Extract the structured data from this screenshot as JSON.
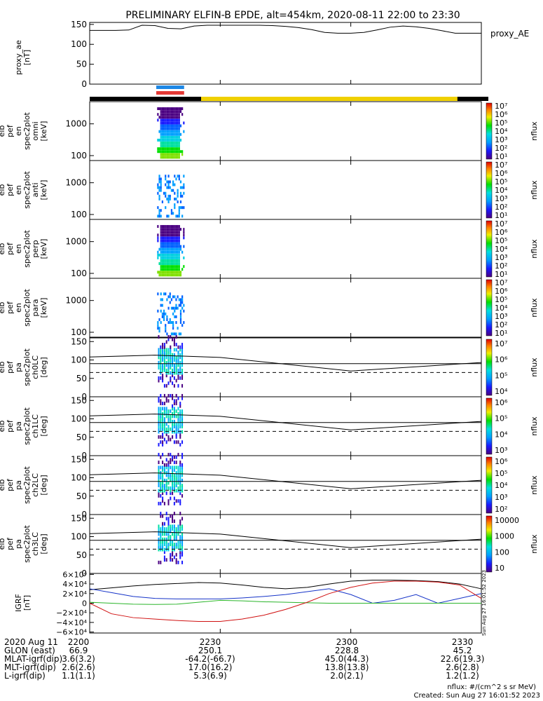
{
  "title": "PRELIMINARY ELFIN-B EPDE, alt=454km, 2020-08-11 22:00 to 23:30",
  "colors": {
    "frame": "#000000",
    "sun_bar": "#f0d000",
    "blue_bar": "#1e88e5",
    "red_bar": "#e53935",
    "cb_high": "#e53935",
    "cb_low": "#4b0082",
    "bgrf_x": "#000000",
    "bgrf_y": "#1533c8",
    "bgrf_z": "#2bb52b",
    "bgrf_r": "#d01010"
  },
  "time_axis": {
    "start_min": 0,
    "end_min": 90,
    "tick_labels": [
      "2200",
      "2230",
      "2300",
      "2330"
    ],
    "tick_minutes": [
      0,
      30,
      60,
      90
    ]
  },
  "ae_panel": {
    "ylabel_lines": [
      "proxy_ae",
      "[nT]"
    ],
    "yticks": [
      "150",
      "100",
      "50",
      "0"
    ],
    "ytick_values": [
      150,
      100,
      50,
      0
    ],
    "ylim": [
      0,
      155
    ],
    "legend": "proxy_AE"
  },
  "spectra_panels": [
    {
      "ylabel_lines": [
        "elb",
        "pef",
        "en",
        "spec2plot",
        "omni",
        "[keV]"
      ],
      "yticks": [
        "1000",
        "100"
      ],
      "yvals": [
        1000,
        100
      ],
      "cb_label": "nflux",
      "cb_ticks": [
        "10⁷",
        "10⁶",
        "10⁵",
        "10⁴",
        "10³",
        "10²",
        "10¹"
      ]
    },
    {
      "ylabel_lines": [
        "elb",
        "pef",
        "en",
        "spec2plot",
        "anti",
        "[keV]"
      ],
      "yticks": [
        "1000",
        "100"
      ],
      "yvals": [
        1000,
        100
      ],
      "cb_label": "nflux",
      "cb_ticks": [
        "10⁷",
        "10⁶",
        "10⁵",
        "10⁴",
        "10³",
        "10²",
        "10¹"
      ]
    },
    {
      "ylabel_lines": [
        "elb",
        "pef",
        "en",
        "spec2plot",
        "perp",
        "[keV]"
      ],
      "yticks": [
        "1000",
        "100"
      ],
      "yvals": [
        1000,
        100
      ],
      "cb_label": "nflux",
      "cb_ticks": [
        "10⁷",
        "10⁶",
        "10⁵",
        "10⁴",
        "10³",
        "10²",
        "10¹"
      ]
    },
    {
      "ylabel_lines": [
        "elb",
        "pef",
        "en",
        "spec2plot",
        "para",
        "[keV]"
      ],
      "yticks": [
        "1000",
        "100"
      ],
      "yvals": [
        1000,
        100
      ],
      "cb_label": "nflux",
      "cb_ticks": [
        "10⁷",
        "10⁶",
        "10⁵",
        "10⁴",
        "10³",
        "10²",
        "10¹"
      ]
    }
  ],
  "pa_panels": [
    {
      "ylabel_lines": [
        "elb",
        "pef",
        "pa",
        "spec2plot",
        "ch0LC",
        "[deg]"
      ],
      "yticks": [
        "150",
        "100",
        "50",
        "0"
      ],
      "cb_label": "nflux",
      "cb_ticks": [
        "10⁷",
        "10⁶",
        "10⁵",
        "10⁴"
      ]
    },
    {
      "ylabel_lines": [
        "elb",
        "pef",
        "pa",
        "spec2plot",
        "ch1LC",
        "[deg]"
      ],
      "yticks": [
        "150",
        "100",
        "50",
        "0"
      ],
      "cb_label": "nflux",
      "cb_ticks": [
        "10⁶",
        "10⁵",
        "10⁴",
        "10³"
      ]
    },
    {
      "ylabel_lines": [
        "elb",
        "pef",
        "pa",
        "spec2plot",
        "ch2LC",
        "[deg]"
      ],
      "yticks": [
        "150",
        "100",
        "50",
        "0"
      ],
      "cb_label": "nflux",
      "cb_ticks": [
        "10⁶",
        "10⁵",
        "10⁴",
        "10³",
        "10²"
      ]
    },
    {
      "ylabel_lines": [
        "elb",
        "pef",
        "pa",
        "spec2plot",
        "ch3LC",
        "[deg]"
      ],
      "yticks": [
        "150",
        "100",
        "50",
        "0"
      ],
      "cb_label": "nflux",
      "cb_ticks": [
        "10000",
        "1000",
        "100",
        "10"
      ]
    }
  ],
  "bgrf_panel": {
    "ylabel_lines": [
      "IGRF",
      "[nT]"
    ],
    "yticks": [
      "6×10⁴",
      "4×10⁴",
      "2×10⁴",
      "0",
      "−2×10⁴",
      "−4×10⁴",
      "−6×10⁴"
    ],
    "ytick_values": [
      60000,
      40000,
      20000,
      0,
      -20000,
      -40000,
      -60000
    ],
    "side_note": "Sun Aug 27 16:01:52 2023"
  },
  "chart_data": {
    "type": "line",
    "title": "PRELIMINARY ELFIN-B EPDE, alt=454km, 2020-08-11 22:00 to 23:30",
    "xlabel": "",
    "proxy_ae": {
      "x": [
        0,
        3,
        6,
        9,
        12,
        15,
        18,
        21,
        24,
        27,
        30,
        33,
        36,
        39,
        42,
        45,
        48,
        51,
        54,
        57,
        60,
        63,
        66,
        69,
        72,
        75,
        78,
        81,
        84,
        87,
        90
      ],
      "y": [
        135,
        135,
        135,
        136,
        148,
        147,
        140,
        139,
        146,
        148,
        148,
        148,
        148,
        148,
        147,
        145,
        142,
        137,
        130,
        128,
        128,
        130,
        136,
        143,
        146,
        144,
        140,
        134,
        128,
        128,
        128
      ]
    },
    "activity_window_min": [
      11.5,
      15.5
    ],
    "ylim_energy_keV": [
      70,
      5000
    ],
    "ylim_pa_deg": [
      0,
      160
    ],
    "loss_cone_solid": {
      "x": [
        0,
        15,
        30,
        60,
        90
      ],
      "y": [
        108,
        113,
        107,
        70,
        93
      ]
    },
    "loss_cone_dashed": 66,
    "pa_reference": 90,
    "bgrf": {
      "x": [
        0,
        5,
        10,
        15,
        20,
        25,
        30,
        35,
        40,
        45,
        50,
        55,
        60,
        65,
        70,
        75,
        80,
        85,
        90
      ],
      "series": [
        {
          "values": [
            28000,
            32000,
            36000,
            39000,
            41000,
            43000,
            42000,
            38000,
            33000,
            30000,
            33000,
            40000,
            46000,
            48000,
            48000,
            47000,
            45000,
            40000,
            30000
          ]
        },
        {
          "values": [
            30000,
            22000,
            14000,
            10000,
            9000,
            9000,
            9000,
            11000,
            14000,
            18000,
            24000,
            30000,
            18000,
            0,
            6000,
            18000,
            0,
            10000,
            20000
          ]
        },
        {
          "values": [
            2000,
            0,
            -2000,
            -2500,
            -2000,
            2000,
            6000,
            5000,
            3000,
            2000,
            1000,
            0,
            0,
            0,
            0,
            0,
            0,
            0,
            0
          ]
        },
        {
          "values": [
            0,
            -22000,
            -30000,
            -33000,
            -36000,
            -38000,
            -38000,
            -33000,
            -25000,
            -13000,
            2000,
            20000,
            33000,
            42000,
            46000,
            46000,
            44000,
            38000,
            10000
          ]
        }
      ],
      "ylim": [
        -62000,
        62000
      ]
    }
  },
  "footer": {
    "rows": [
      {
        "label": "2020 Aug 11",
        "vals": [
          "2200",
          "2230",
          "2300",
          "2330"
        ]
      },
      {
        "label": "GLON (east)",
        "vals": [
          "66.9",
          "250.1",
          "228.8",
          "45.2"
        ]
      },
      {
        "label": "MLAT-igrf(dip)",
        "vals": [
          "3.6(3.2)",
          "-64.2(-66.7)",
          "45.0(44.3)",
          "22.6(19.3)"
        ]
      },
      {
        "label": "MLT-igrf(dip)",
        "vals": [
          "2.6(2.6)",
          "17.0(16.2)",
          "13.8(13.8)",
          "2.6(2.8)"
        ]
      },
      {
        "label": "L-igrf(dip)",
        "vals": [
          "1.1(1.1)",
          "5.3(6.9)",
          "2.0(2.1)",
          "1.2(1.2)"
        ]
      }
    ],
    "units_note": "nflux: #/(cm^2 s sr MeV)",
    "created": "Created: Sun Aug 27 16:01:52 2023"
  }
}
